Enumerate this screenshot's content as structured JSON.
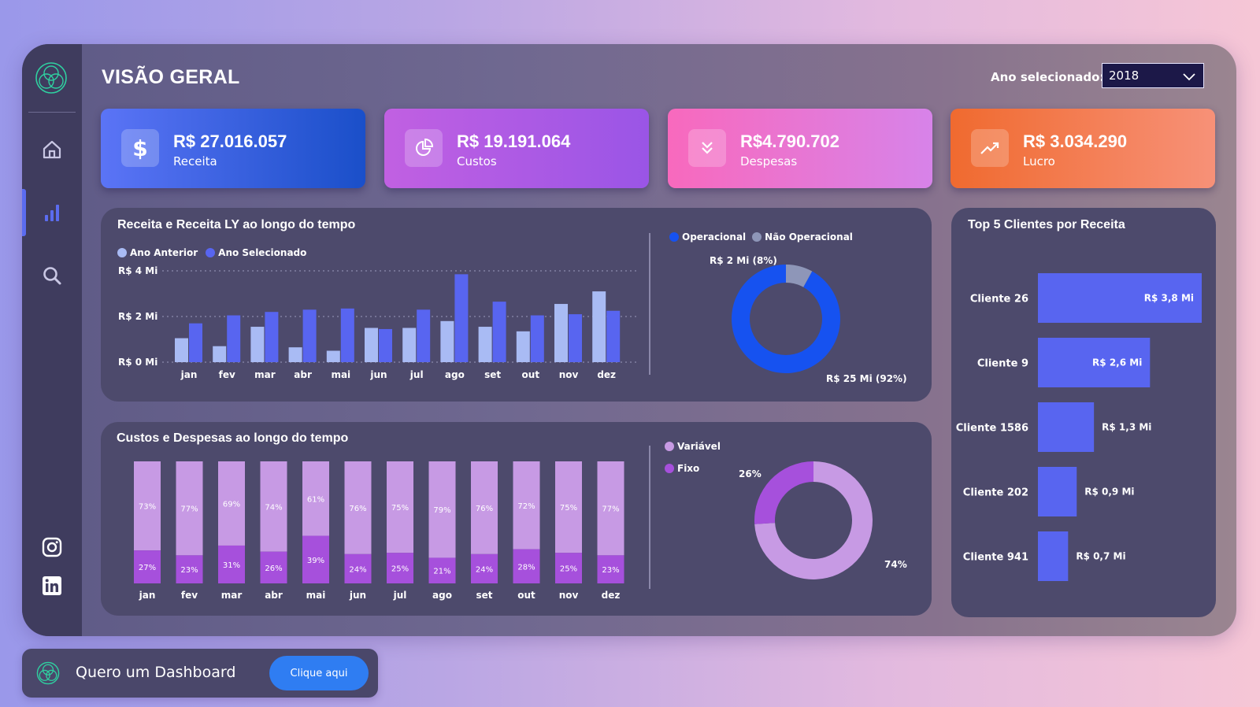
{
  "header": {
    "title": "VISÃO GERAL",
    "year_label": "Ano selecionado:",
    "year_value": "2018"
  },
  "sidebar": {
    "items": [
      {
        "icon": "home-icon"
      },
      {
        "icon": "bar-chart-icon",
        "active": true
      },
      {
        "icon": "search-icon"
      }
    ],
    "social": [
      "instagram-icon",
      "linkedin-icon"
    ]
  },
  "kpis": [
    {
      "value": "R$ 27.016.057",
      "label": "Receita",
      "icon": "dollar-icon",
      "color": "#4f6cf2"
    },
    {
      "value": "R$ 19.191.064",
      "label": "Custos",
      "icon": "pie-icon",
      "color": "#b65ee6"
    },
    {
      "value": "R$4.790.702",
      "label": "Despesas",
      "icon": "chevrons-down-icon",
      "color": "#f26cc0"
    },
    {
      "value": "R$ 3.034.290",
      "label": "Lucro",
      "icon": "trending-up-icon",
      "color": "#f57a48"
    }
  ],
  "revenue_panel": {
    "title": "Receita e Receita LY ao longo do tempo",
    "legend": [
      "Ano Anterior",
      "Ano Selecionado"
    ],
    "donut_legend": [
      "Operacional",
      "Não Operacional"
    ],
    "donut_label_small": "R$ 2 Mi (8%)",
    "donut_label_large": "R$ 25 Mi (92%)"
  },
  "cost_panel": {
    "title": "Custos e Despesas ao longo do tempo",
    "legend": [
      "Variável",
      "Fixo"
    ],
    "donut_label_small": "26%",
    "donut_label_large": "74%"
  },
  "top_panel": {
    "title": "Top 5 Clientes por Receita"
  },
  "promo": {
    "text": "Quero um Dashboard",
    "button": "Clique aqui"
  },
  "chart_data": [
    {
      "type": "bar",
      "categories": [
        "jan",
        "fev",
        "mar",
        "abr",
        "mai",
        "jun",
        "jul",
        "ago",
        "set",
        "out",
        "nov",
        "dez"
      ],
      "series": [
        {
          "name": "Ano Anterior",
          "values": [
            1.05,
            0.7,
            1.55,
            0.65,
            0.5,
            1.5,
            1.5,
            1.8,
            1.55,
            1.35,
            2.55,
            3.1
          ],
          "color": "#a9bbf4"
        },
        {
          "name": "Ano Selecionado",
          "values": [
            1.7,
            2.05,
            2.2,
            2.3,
            2.35,
            1.45,
            2.3,
            3.85,
            2.65,
            2.05,
            2.1,
            2.25
          ],
          "color": "#5865f0"
        }
      ],
      "yticks": [
        "R$ 0 Mi",
        "R$ 2 Mi",
        "R$ 4 Mi"
      ],
      "ylim": [
        0,
        4
      ]
    },
    {
      "type": "pie",
      "categories": [
        "Operacional",
        "Não Operacional"
      ],
      "values": [
        92,
        8
      ],
      "colors": [
        "#1652f0",
        "#8e96b8"
      ]
    },
    {
      "type": "bar",
      "categories": [
        "jan",
        "fev",
        "mar",
        "abr",
        "mai",
        "jun",
        "jul",
        "ago",
        "set",
        "out",
        "nov",
        "dez"
      ],
      "series": [
        {
          "name": "Variável",
          "values": [
            73,
            77,
            69,
            74,
            61,
            76,
            75,
            79,
            76,
            72,
            75,
            77
          ],
          "color": "#c79ae4"
        },
        {
          "name": "Fixo",
          "values": [
            27,
            23,
            31,
            26,
            39,
            24,
            25,
            21,
            24,
            28,
            25,
            23
          ],
          "color": "#a650dc"
        }
      ],
      "labels_top": [
        "73%",
        "77%",
        "69%",
        "74%",
        "61%",
        "76%",
        "75%",
        "79%",
        "76%",
        "72%",
        "75%",
        "77%"
      ],
      "labels_bottom": [
        "27%",
        "23%",
        "31%",
        "26%",
        "39%",
        "24%",
        "25%",
        "21%",
        "24%",
        "28%",
        "25%",
        "23%"
      ]
    },
    {
      "type": "pie",
      "categories": [
        "Variável",
        "Fixo"
      ],
      "values": [
        74,
        26
      ],
      "colors": [
        "#c79ae4",
        "#a650dc"
      ]
    },
    {
      "type": "bar",
      "orientation": "horizontal",
      "categories": [
        "Cliente 26",
        "Cliente 9",
        "Cliente 1586",
        "Cliente 202",
        "Cliente 941"
      ],
      "values": [
        3.8,
        2.6,
        1.3,
        0.9,
        0.7
      ],
      "labels": [
        "R$ 3,8 Mi",
        "R$ 2,6 Mi",
        "R$ 1,3 Mi",
        "R$ 0,9 Mi",
        "R$ 0,7 Mi"
      ],
      "color": "#5865f0"
    }
  ]
}
